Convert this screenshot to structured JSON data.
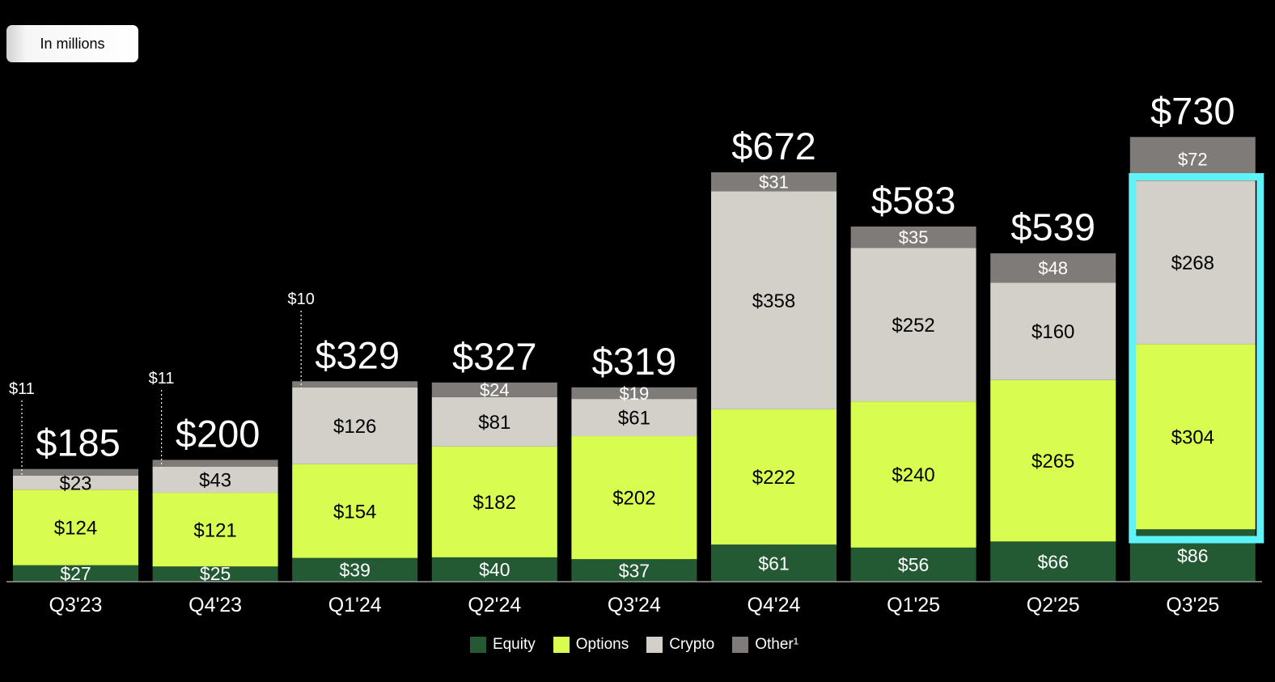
{
  "unit_label": "In millions",
  "chart_data": {
    "type": "bar",
    "stacked": true,
    "categories": [
      "Q3'23",
      "Q4'23",
      "Q1'24",
      "Q2'24",
      "Q3'24",
      "Q4'24",
      "Q1'25",
      "Q2'25",
      "Q3'25"
    ],
    "series": [
      {
        "name": "Equity",
        "color": "#235a34",
        "label_color": "#ffffff",
        "values": [
          27,
          25,
          39,
          40,
          37,
          61,
          56,
          66,
          86
        ],
        "labels": [
          "$27",
          "$25",
          "$39",
          "$40",
          "$37",
          "$61",
          "$56",
          "$66",
          "$86"
        ]
      },
      {
        "name": "Options",
        "color": "#d8fd50",
        "label_color": "#000000",
        "values": [
          124,
          121,
          154,
          182,
          202,
          222,
          240,
          265,
          304
        ],
        "labels": [
          "$124",
          "$121",
          "$154",
          "$182",
          "$202",
          "$222",
          "$240",
          "$265",
          "$304"
        ]
      },
      {
        "name": "Crypto",
        "color": "#d3cfc9",
        "label_color": "#000000",
        "values": [
          23,
          43,
          126,
          81,
          61,
          358,
          252,
          160,
          268
        ],
        "labels": [
          "$23",
          "$43",
          "$126",
          "$81",
          "$61",
          "$358",
          "$252",
          "$160",
          "$268"
        ]
      },
      {
        "name": "Other¹",
        "color": "#7f7b78",
        "label_color": "#ffffff",
        "values": [
          11,
          11,
          10,
          24,
          19,
          31,
          35,
          48,
          72
        ],
        "labels": [
          "$11",
          "$11",
          "$10",
          "$24",
          "$19",
          "$31",
          "$35",
          "$48",
          "$72"
        ]
      }
    ],
    "totals": [
      185,
      200,
      329,
      327,
      319,
      672,
      583,
      539,
      730
    ],
    "total_labels": [
      "$185",
      "$200",
      "$329",
      "$327",
      "$319",
      "$672",
      "$583",
      "$539",
      "$730"
    ],
    "callout_indices": [
      0,
      1,
      2
    ],
    "highlight_index": 8,
    "highlight_color": "#5ef3f8",
    "legend_position": "bottom-center",
    "ylim": [
      0,
      800
    ],
    "title": "",
    "xlabel": "",
    "ylabel": ""
  }
}
